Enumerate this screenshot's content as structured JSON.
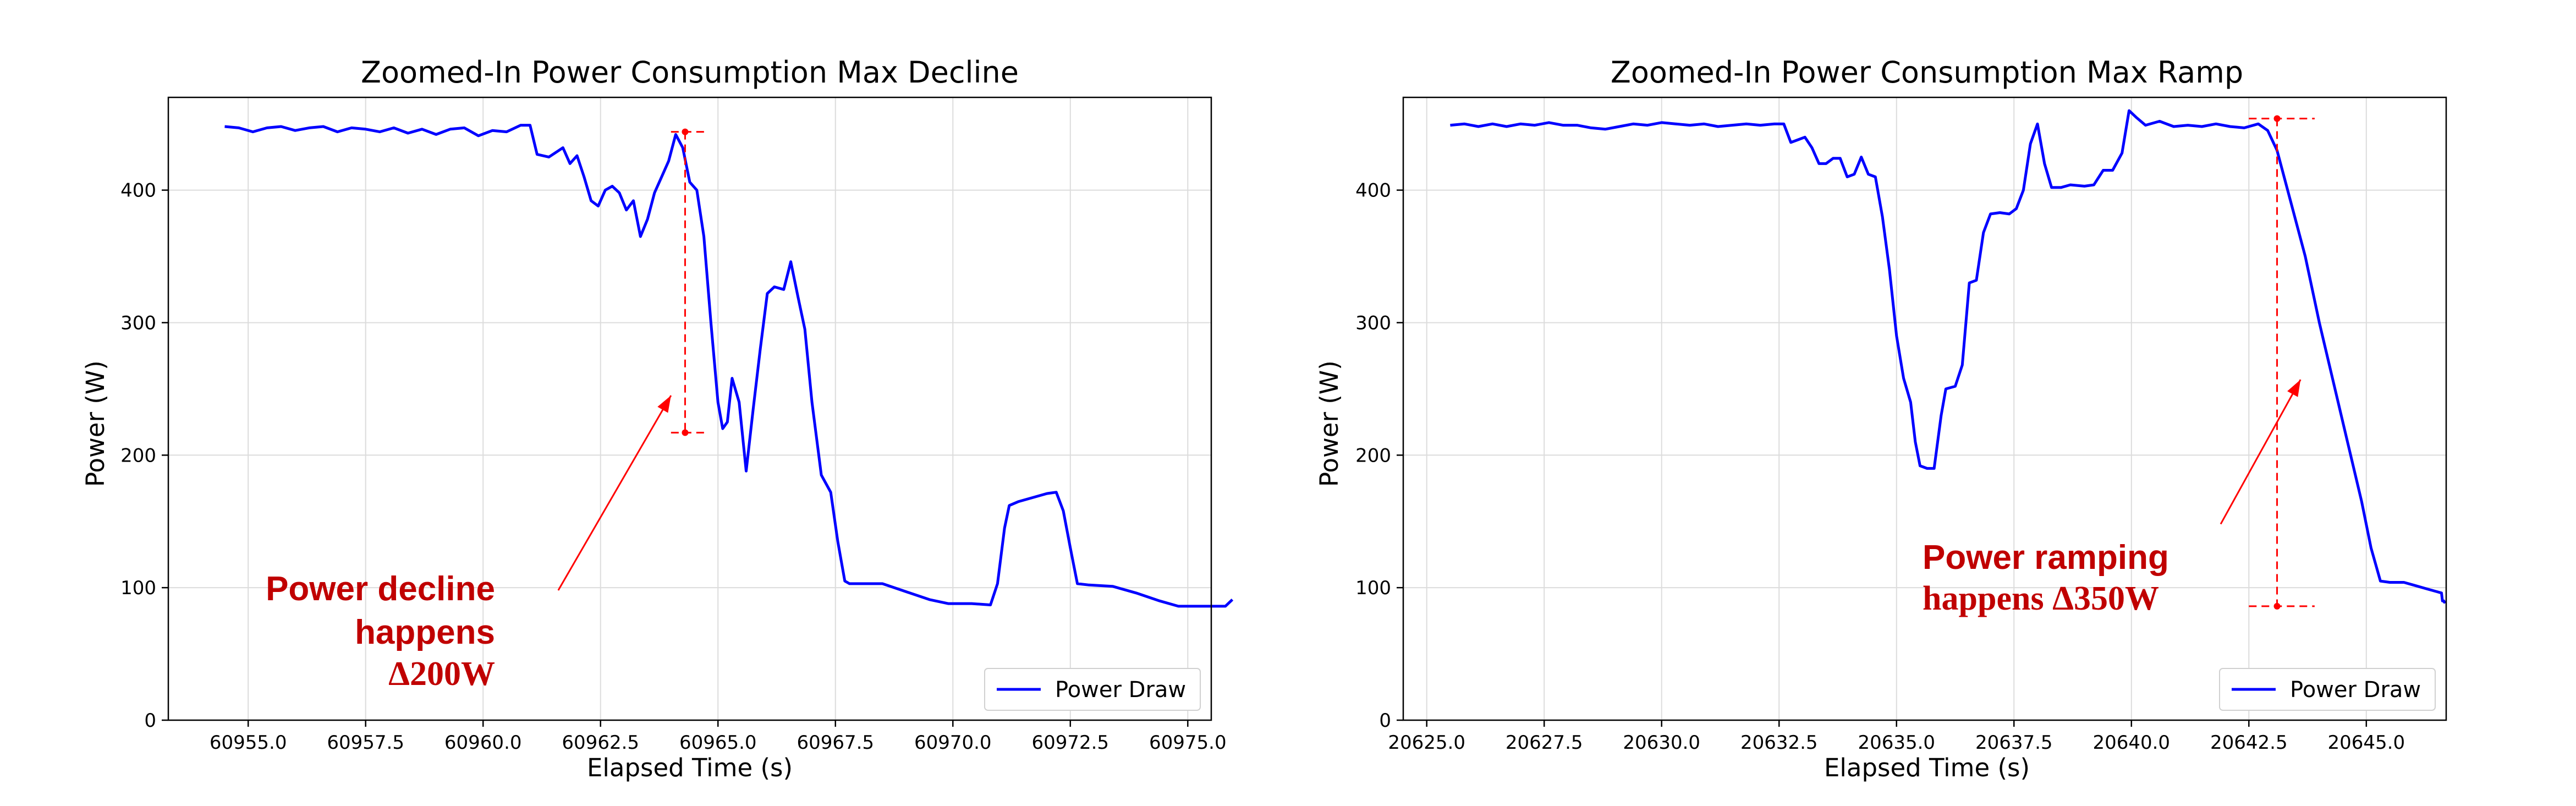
{
  "chart_data": [
    {
      "type": "line",
      "title": "Zoomed-In Power Consumption Max Decline",
      "xlabel": "Elapsed Time (s)",
      "ylabel": "Power (W)",
      "xlim": [
        60953.3,
        60975.5
      ],
      "ylim": [
        0,
        470
      ],
      "x_ticks": [
        60955.0,
        60957.5,
        60960.0,
        60962.5,
        60965.0,
        60967.5,
        60970.0,
        60972.5,
        60975.0
      ],
      "x_tick_labels": [
        "60955.0",
        "60957.5",
        "60960.0",
        "60962.5",
        "60965.0",
        "60967.5",
        "60970.0",
        "60972.5",
        "60975.0"
      ],
      "y_ticks": [
        0,
        100,
        200,
        300,
        400
      ],
      "y_tick_labels": [
        "0",
        "100",
        "200",
        "300",
        "400"
      ],
      "grid": true,
      "legend_position": "lower-right",
      "series": [
        {
          "name": "Power Draw",
          "color": "#0000ff",
          "points": [
            [
              60954.5,
              448
            ],
            [
              60954.8,
              447
            ],
            [
              60955.1,
              444
            ],
            [
              60955.4,
              447
            ],
            [
              60955.7,
              448
            ],
            [
              60956.0,
              445
            ],
            [
              60956.3,
              447
            ],
            [
              60956.6,
              448
            ],
            [
              60956.9,
              444
            ],
            [
              60957.2,
              447
            ],
            [
              60957.5,
              446
            ],
            [
              60957.8,
              444
            ],
            [
              60958.1,
              447
            ],
            [
              60958.4,
              443
            ],
            [
              60958.7,
              446
            ],
            [
              60959.0,
              442
            ],
            [
              60959.3,
              446
            ],
            [
              60959.6,
              447
            ],
            [
              60959.9,
              441
            ],
            [
              60960.2,
              445
            ],
            [
              60960.5,
              444
            ],
            [
              60960.8,
              449
            ],
            [
              60961.0,
              449
            ],
            [
              60961.15,
              427
            ],
            [
              60961.4,
              425
            ],
            [
              60961.7,
              432
            ],
            [
              60961.85,
              420
            ],
            [
              60962.0,
              426
            ],
            [
              60962.15,
              410
            ],
            [
              60962.3,
              392
            ],
            [
              60962.45,
              388
            ],
            [
              60962.6,
              400
            ],
            [
              60962.75,
              403
            ],
            [
              60962.9,
              398
            ],
            [
              60963.05,
              385
            ],
            [
              60963.2,
              392
            ],
            [
              60963.35,
              365
            ],
            [
              60963.5,
              378
            ],
            [
              60963.65,
              398
            ],
            [
              60963.8,
              410
            ],
            [
              60963.95,
              422
            ],
            [
              60964.1,
              442
            ],
            [
              60964.25,
              432
            ],
            [
              60964.4,
              406
            ],
            [
              60964.55,
              400
            ],
            [
              60964.7,
              365
            ],
            [
              60964.85,
              300
            ],
            [
              60965.0,
              240
            ],
            [
              60965.1,
              220
            ],
            [
              60965.2,
              225
            ],
            [
              60965.3,
              258
            ],
            [
              60965.45,
              240
            ],
            [
              60965.6,
              188
            ],
            [
              60965.75,
              235
            ],
            [
              60965.9,
              280
            ],
            [
              60966.05,
              322
            ],
            [
              60966.2,
              327
            ],
            [
              60966.4,
              325
            ],
            [
              60966.55,
              346
            ],
            [
              60966.7,
              320
            ],
            [
              60966.85,
              295
            ],
            [
              60967.0,
              240
            ],
            [
              60967.2,
              185
            ],
            [
              60967.4,
              172
            ],
            [
              60967.55,
              135
            ],
            [
              60967.7,
              105
            ],
            [
              60967.8,
              103
            ],
            [
              60968.5,
              103
            ],
            [
              60969.0,
              97
            ],
            [
              60969.5,
              91
            ],
            [
              60969.9,
              88
            ],
            [
              60970.4,
              88
            ],
            [
              60970.8,
              87
            ],
            [
              60970.95,
              103
            ],
            [
              60971.1,
              145
            ],
            [
              60971.2,
              162
            ],
            [
              60971.4,
              165
            ],
            [
              60971.7,
              168
            ],
            [
              60972.0,
              171
            ],
            [
              60972.2,
              172
            ],
            [
              60972.35,
              158
            ],
            [
              60972.5,
              130
            ],
            [
              60972.65,
              103
            ],
            [
              60972.9,
              102
            ],
            [
              60973.4,
              101
            ],
            [
              60973.9,
              96
            ],
            [
              60974.4,
              90
            ],
            [
              60974.8,
              86
            ],
            [
              60975.6,
              86
            ],
            [
              60975.8,
              86
            ],
            [
              60975.95,
              91
            ]
          ]
        }
      ],
      "marker_line": {
        "x": 60964.3,
        "y_top": 444,
        "y_bottom": 217,
        "x_left": 60964.0,
        "x_right": 60964.8,
        "color": "#ff0000"
      },
      "arrow": {
        "from": [
          60961.6,
          98
        ],
        "to": [
          60964.0,
          245
        ]
      },
      "annotation": {
        "line1": "Power decline",
        "line2": "happens",
        "line3": "Δ200W",
        "color": "#c00000"
      }
    },
    {
      "type": "line",
      "title": "Zoomed-In Power Consumption Max Ramp",
      "xlabel": "Elapsed Time (s)",
      "ylabel": "Power (W)",
      "xlim": [
        20624.5,
        20646.7
      ],
      "ylim": [
        0,
        470
      ],
      "x_ticks": [
        20625.0,
        20627.5,
        20630.0,
        20632.5,
        20635.0,
        20637.5,
        20640.0,
        20642.5,
        20645.0
      ],
      "x_tick_labels": [
        "20625.0",
        "20627.5",
        "20630.0",
        "20632.5",
        "20635.0",
        "20637.5",
        "20640.0",
        "20642.5",
        "20645.0"
      ],
      "y_ticks": [
        0,
        100,
        200,
        300,
        400
      ],
      "y_tick_labels": [
        "0",
        "100",
        "200",
        "300",
        "400"
      ],
      "grid": true,
      "legend_position": "lower-right",
      "series": [
        {
          "name": "Power Draw",
          "color": "#0000ff",
          "points": [
            [
              20625.5,
              449
            ],
            [
              20625.8,
              450
            ],
            [
              20626.1,
              448
            ],
            [
              20626.4,
              450
            ],
            [
              20626.7,
              448
            ],
            [
              20627.0,
              450
            ],
            [
              20627.3,
              449
            ],
            [
              20627.6,
              451
            ],
            [
              20627.9,
              449
            ],
            [
              20628.2,
              449
            ],
            [
              20628.5,
              447
            ],
            [
              20628.8,
              446
            ],
            [
              20629.1,
              448
            ],
            [
              20629.4,
              450
            ],
            [
              20629.7,
              449
            ],
            [
              20630.0,
              451
            ],
            [
              20630.3,
              450
            ],
            [
              20630.6,
              449
            ],
            [
              20630.9,
              450
            ],
            [
              20631.2,
              448
            ],
            [
              20631.5,
              449
            ],
            [
              20631.8,
              450
            ],
            [
              20632.1,
              449
            ],
            [
              20632.4,
              450
            ],
            [
              20632.6,
              450
            ],
            [
              20632.75,
              436
            ],
            [
              20632.9,
              438
            ],
            [
              20633.05,
              440
            ],
            [
              20633.2,
              432
            ],
            [
              20633.35,
              420
            ],
            [
              20633.5,
              420
            ],
            [
              20633.65,
              424
            ],
            [
              20633.8,
              424
            ],
            [
              20633.95,
              410
            ],
            [
              20634.1,
              412
            ],
            [
              20634.25,
              425
            ],
            [
              20634.4,
              412
            ],
            [
              20634.55,
              410
            ],
            [
              20634.7,
              380
            ],
            [
              20634.85,
              340
            ],
            [
              20635.0,
              290
            ],
            [
              20635.15,
              258
            ],
            [
              20635.3,
              240
            ],
            [
              20635.4,
              210
            ],
            [
              20635.5,
              192
            ],
            [
              20635.65,
              190
            ],
            [
              20635.8,
              190
            ],
            [
              20635.95,
              230
            ],
            [
              20636.05,
              250
            ],
            [
              20636.25,
              252
            ],
            [
              20636.4,
              268
            ],
            [
              20636.55,
              330
            ],
            [
              20636.7,
              332
            ],
            [
              20636.85,
              368
            ],
            [
              20637.0,
              382
            ],
            [
              20637.2,
              383
            ],
            [
              20637.4,
              382
            ],
            [
              20637.55,
              386
            ],
            [
              20637.7,
              400
            ],
            [
              20637.85,
              435
            ],
            [
              20638.0,
              450
            ],
            [
              20638.15,
              420
            ],
            [
              20638.3,
              402
            ],
            [
              20638.5,
              402
            ],
            [
              20638.7,
              404
            ],
            [
              20639.0,
              403
            ],
            [
              20639.2,
              404
            ],
            [
              20639.4,
              415
            ],
            [
              20639.6,
              415
            ],
            [
              20639.8,
              428
            ],
            [
              20639.95,
              460
            ],
            [
              20640.1,
              455
            ],
            [
              20640.3,
              449
            ],
            [
              20640.6,
              452
            ],
            [
              20640.9,
              448
            ],
            [
              20641.2,
              449
            ],
            [
              20641.5,
              448
            ],
            [
              20641.8,
              450
            ],
            [
              20642.1,
              448
            ],
            [
              20642.4,
              447
            ],
            [
              20642.7,
              450
            ],
            [
              20642.9,
              445
            ],
            [
              20643.1,
              430
            ],
            [
              20643.4,
              390
            ],
            [
              20643.7,
              350
            ],
            [
              20644.0,
              300
            ],
            [
              20644.3,
              255
            ],
            [
              20644.6,
              210
            ],
            [
              20644.9,
              165
            ],
            [
              20645.1,
              130
            ],
            [
              20645.3,
              105
            ],
            [
              20645.5,
              104
            ],
            [
              20645.8,
              104
            ],
            [
              20646.0,
              102
            ],
            [
              20646.3,
              99
            ],
            [
              20646.5,
              97
            ],
            [
              20646.6,
              96
            ],
            [
              20646.62,
              90
            ],
            [
              20646.65,
              90
            ],
            [
              20646.66,
              89
            ],
            [
              20646.67,
              90
            ]
          ]
        }
      ],
      "marker_line": {
        "x": 20643.1,
        "y_top": 454,
        "y_bottom": 86,
        "x_left": 20642.5,
        "x_right": 20643.9,
        "color": "#ff0000"
      },
      "arrow": {
        "from": [
          20641.9,
          148
        ],
        "to": [
          20643.6,
          257
        ]
      },
      "annotation": {
        "line1": "Power ramping",
        "line2": "happens Δ350W",
        "color": "#c00000"
      }
    }
  ]
}
